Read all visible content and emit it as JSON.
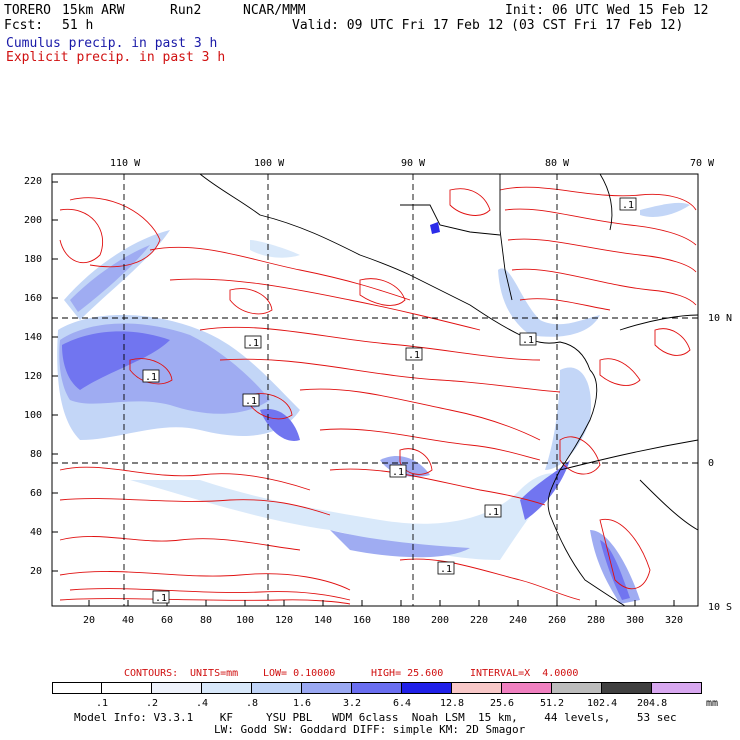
{
  "header": {
    "model": "TORERO",
    "resolution": "15km ARW",
    "run": "Run2",
    "center": "NCAR/MMM",
    "init": "Init: 06 UTC Wed 15 Feb 12",
    "fcst_label": "Fcst:",
    "fcst_hours": "51 h",
    "valid": "Valid: 09 UTC Fri 17 Feb 12 (03 CST Fri 17 Feb 12)"
  },
  "fields": {
    "cumulus": "Cumulus precip. in past 3 h",
    "explicit": "Explicit precip. in past 3 h"
  },
  "colors": {
    "cumulus_text": "#1a1aa8",
    "explicit_text": "#d01010",
    "contour": "#e01010",
    "coast": "#000000"
  },
  "map": {
    "lon_labels": [
      "110 W",
      "100 W",
      "90 W",
      "80 W",
      "70 W"
    ],
    "lat_labels": [
      "10 N",
      "0",
      "10 S"
    ],
    "y_ticks": [
      "220",
      "200",
      "180",
      "160",
      "140",
      "120",
      "100",
      "80",
      "60",
      "40",
      "20"
    ],
    "x_ticks": [
      "20",
      "40",
      "60",
      "80",
      "100",
      "120",
      "140",
      "160",
      "180",
      "200",
      "220",
      "240",
      "260",
      "280",
      "300",
      "320"
    ],
    "contour_value_labels": [
      ".1",
      ".1",
      ".1",
      ".1",
      ".1",
      ".1",
      ".1",
      ".1",
      ".1",
      ".1"
    ]
  },
  "contour_info": {
    "contours": "CONTOURS:",
    "units": "UNITS=mm",
    "low": "LOW= 0.10000",
    "high": "HIGH= 25.600",
    "interval": "INTERVAL=X  4.0000"
  },
  "legend": {
    "labels": [
      ".1",
      ".2",
      ".4",
      ".8",
      "1.6",
      "3.2",
      "6.4",
      "12.8",
      "25.6",
      "51.2",
      "102.4",
      "204.8"
    ],
    "unit": "mm",
    "colors": [
      "#ffffff",
      "#ffffff",
      "#eef2fb",
      "#d8e8fa",
      "#c0d4f7",
      "#9aa8f2",
      "#6a6ef0",
      "#2020e8",
      "#f8c8c8",
      "#f080c0",
      "#bcbcbc",
      "#404040",
      "#d8a8f0"
    ]
  },
  "footer": {
    "line1": "Model Info: V3.3.1    KF     YSU PBL   WDM 6class  Noah LSM  15 km,    44 levels,    53 sec",
    "line2": "LW: Godd SW: Goddard DIFF: simple KM: 2D Smagor"
  }
}
